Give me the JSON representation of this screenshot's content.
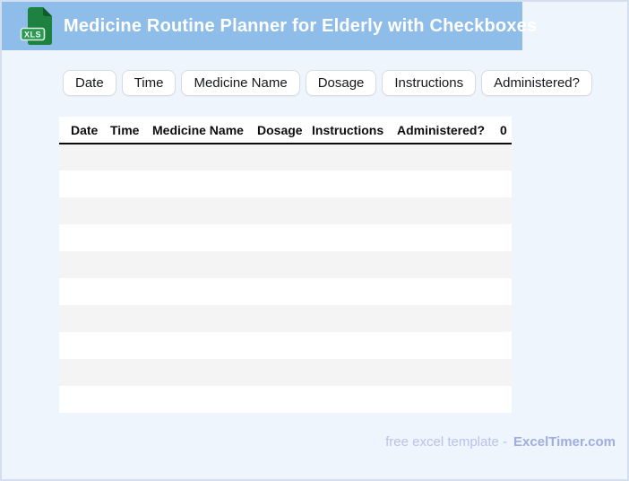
{
  "header": {
    "title": "Medicine Routine Planner for Elderly with Checkboxes",
    "file_badge": "XLS"
  },
  "chips": [
    "Date",
    "Time",
    "Medicine Name",
    "Dosage",
    "Instructions",
    "Administered?"
  ],
  "table": {
    "columns": [
      "Date",
      "Time",
      "Medicine Name",
      "Dosage",
      "Instructions",
      "Administered?",
      "0"
    ],
    "empty_row_count": 10
  },
  "footer": {
    "prefix": "free excel template -",
    "brand": "ExcelTimer.com"
  },
  "colors": {
    "header_bg": "#8fbde9",
    "page_bg": "#eef5fd",
    "page_border": "#d3dfee",
    "row_stripe": "#f5f4f4",
    "table_header_rule": "#0b0b0b",
    "chip_border": "#d8dce2",
    "footer_text": "#b9c3ec",
    "footer_brand": "#9fade0",
    "icon_body_green": "#1d8140",
    "icon_fold_green": "#0f5c2a",
    "icon_badge_green": "#2a9850"
  }
}
